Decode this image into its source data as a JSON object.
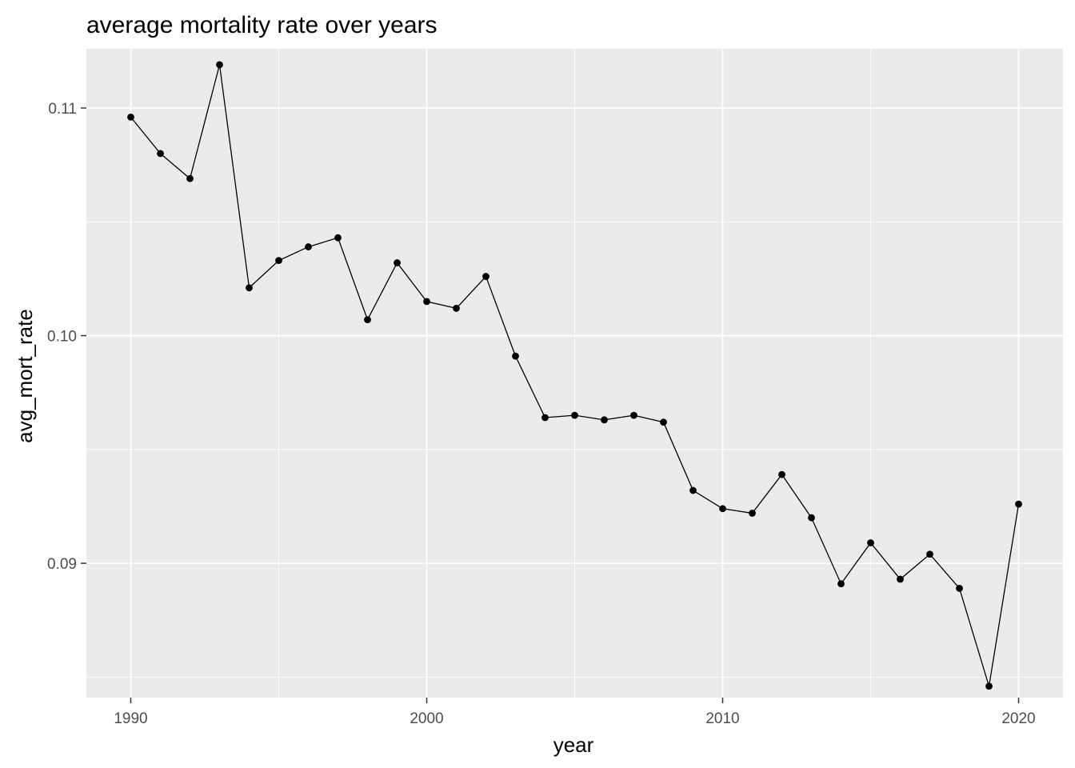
{
  "chart_data": {
    "type": "line",
    "title": "average mortality rate over years",
    "xlabel": "year",
    "ylabel": "avg_mort_rate",
    "xlim": [
      1988.5,
      2021.5
    ],
    "ylim": [
      0.0841,
      0.1126
    ],
    "x_ticks": [
      1990,
      2000,
      2010,
      2020
    ],
    "x_tick_labels": [
      "1990",
      "2000",
      "2010",
      "2020"
    ],
    "x_minor": [
      1995,
      2005,
      2015
    ],
    "y_ticks": [
      0.09,
      0.1,
      0.11
    ],
    "y_tick_labels": [
      "0.09",
      "0.10",
      "0.11"
    ],
    "y_minor": [
      0.085,
      0.095,
      0.105
    ],
    "grid": true,
    "series": [
      {
        "name": "avg_mort_rate",
        "x": [
          1990,
          1991,
          1992,
          1993,
          1994,
          1995,
          1996,
          1997,
          1998,
          1999,
          2000,
          2001,
          2002,
          2003,
          2004,
          2005,
          2006,
          2007,
          2008,
          2009,
          2010,
          2011,
          2012,
          2013,
          2014,
          2015,
          2016,
          2017,
          2018,
          2019,
          2020
        ],
        "values": [
          0.1096,
          0.108,
          0.1069,
          0.1119,
          0.1021,
          0.1033,
          0.1039,
          0.1043,
          0.1007,
          0.1032,
          0.1015,
          0.1012,
          0.1026,
          0.0991,
          0.0964,
          0.0965,
          0.0963,
          0.0965,
          0.0962,
          0.0932,
          0.0924,
          0.0922,
          0.0939,
          0.092,
          0.0891,
          0.0909,
          0.0893,
          0.0904,
          0.0889,
          0.0846,
          0.0926
        ]
      }
    ],
    "colors": {
      "panel": "#ebebeb",
      "grid": "#ffffff",
      "line": "#000000",
      "point": "#000000"
    }
  }
}
